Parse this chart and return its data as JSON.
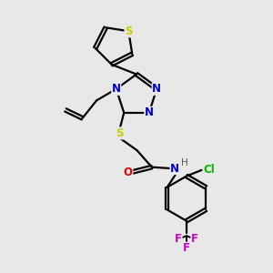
{
  "bg_color": "#e8e8e8",
  "bond_color": "#000000",
  "n_color": "#0000cc",
  "s_color": "#cccc00",
  "o_color": "#dd0000",
  "cl_color": "#00bb00",
  "f_color": "#cc00cc",
  "h_color": "#555555",
  "line_width": 1.6,
  "figsize": [
    3.0,
    3.0
  ],
  "dpi": 100,
  "xlim": [
    0,
    10
  ],
  "ylim": [
    0,
    10
  ]
}
